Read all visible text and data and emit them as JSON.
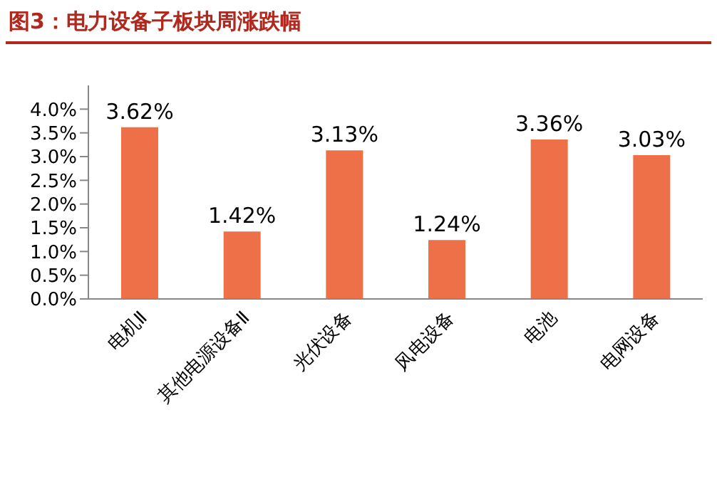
{
  "chart_data": {
    "type": "bar",
    "title": "图3：电力设备子板块周涨跌幅",
    "categories": [
      "电机Ⅱ",
      "其他电源设备Ⅱ",
      "光伏设备",
      "风电设备",
      "电池",
      "电网设备"
    ],
    "values": [
      3.62,
      1.42,
      3.13,
      1.24,
      3.36,
      3.03
    ],
    "value_labels": [
      "3.62%",
      "1.42%",
      "3.13%",
      "1.24%",
      "3.36%",
      "3.03%"
    ],
    "color": "#ee7048",
    "ylim": [
      0,
      4.5
    ],
    "yticks": [
      {
        "value": 0,
        "label": "0.0%"
      },
      {
        "value": 0.5,
        "label": "0.5%"
      },
      {
        "value": 1,
        "label": "1.0%"
      },
      {
        "value": 1.5,
        "label": "1.5%"
      },
      {
        "value": 2,
        "label": "2.0%"
      },
      {
        "value": 2.5,
        "label": "2.5%"
      },
      {
        "value": 3,
        "label": "3.0%"
      },
      {
        "value": 3.5,
        "label": "3.5%"
      },
      {
        "value": 4,
        "label": "4.0%"
      }
    ],
    "grid": false,
    "legend": false
  }
}
